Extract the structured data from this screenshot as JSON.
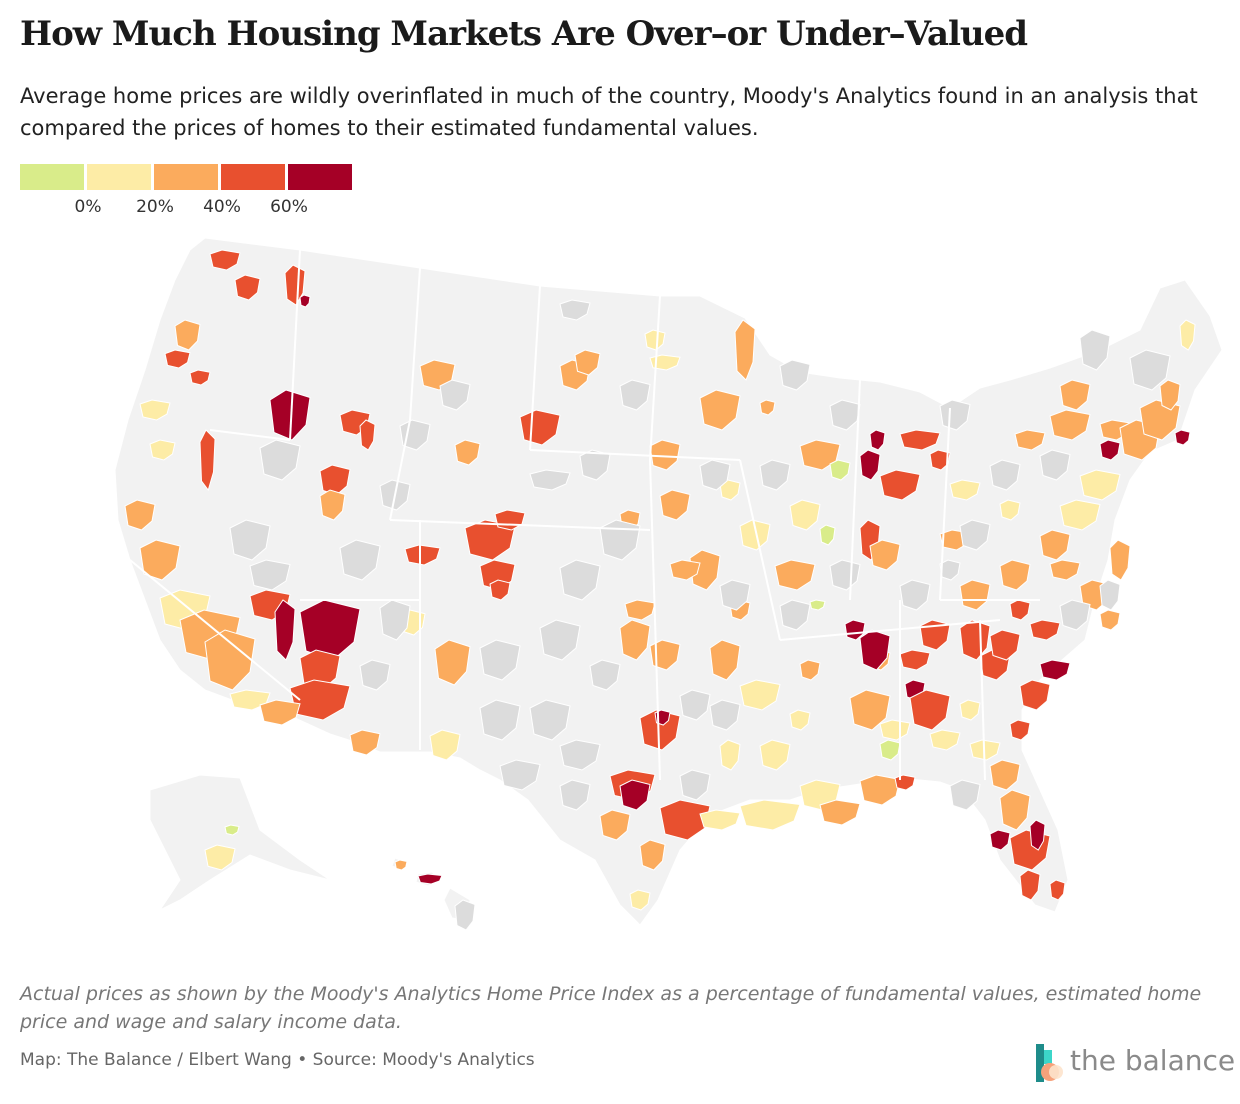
{
  "header": {
    "title": "How Much Housing Markets Are Over–or Under–Valued",
    "subtitle": "Average home prices are wildly overinflated in much of the country, Moody's Analytics found in an analysis that compared the prices of homes to their estimated fundamental values."
  },
  "legend": {
    "colors": [
      "#d9ec8a",
      "#fdeca6",
      "#fbab5d",
      "#e8502f",
      "#a50026"
    ],
    "ticks": [
      "0%",
      "20%",
      "40%",
      "60%"
    ]
  },
  "map": {
    "land_color": "#f2f2f2",
    "no_data_color": "#dcdcdc",
    "region": "United States metropolitan areas"
  },
  "footer": {
    "note": "Actual prices as shown by the Moody's Analytics Home Price Index as a percentage of fundamental values, estimated home price and wage and salary income data.",
    "credit": "Map: The Balance / Elbert Wang • Source: Moody's Analytics",
    "logo_text": "the balance"
  }
}
